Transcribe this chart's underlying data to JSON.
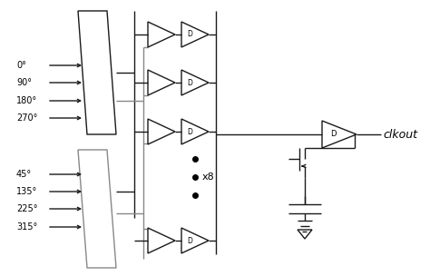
{
  "bg_color": "#ffffff",
  "line_color": "#1a1a1a",
  "gray_color": "#888888",
  "text_color": "#000000",
  "fig_width": 4.74,
  "fig_height": 3.04,
  "dpi": 100,
  "input_labels_top": [
    "0°",
    "90°",
    "180°",
    "270°"
  ],
  "input_labels_bot": [
    "45°",
    "135°",
    "225°",
    "315°"
  ],
  "clkout_label": "clkout"
}
